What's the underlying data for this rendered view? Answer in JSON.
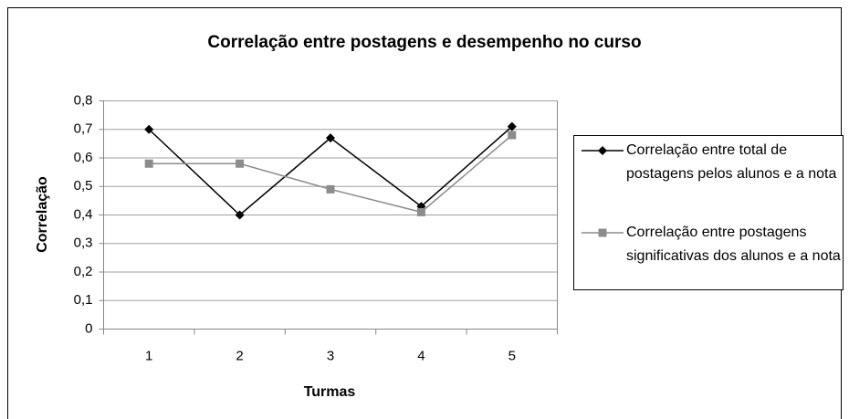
{
  "chart_data": {
    "type": "line",
    "title": "Correlação entre postagens e desempenho no curso",
    "xlabel": "Turmas",
    "ylabel": "Correlação",
    "categories": [
      "1",
      "2",
      "3",
      "4",
      "5"
    ],
    "series": [
      {
        "name": "Correlação entre total de postagens pelos alunos e a nota",
        "color": "#000000",
        "marker": "diamond",
        "values": [
          0.7,
          0.4,
          0.67,
          0.43,
          0.71
        ]
      },
      {
        "name": "Correlação entre postagens significativas dos alunos e a nota",
        "color": "#8c8c8c",
        "marker": "square",
        "values": [
          0.58,
          0.58,
          0.49,
          0.41,
          0.68
        ]
      }
    ],
    "ylim": [
      0,
      0.8
    ],
    "yticks": [
      0,
      {
        "value": 0.1,
        "label": "0,1"
      },
      {
        "value": 0.2,
        "label": "0,2"
      },
      {
        "value": 0.3,
        "label": "0,3"
      },
      {
        "value": 0.4,
        "label": "0,4"
      },
      {
        "value": 0.5,
        "label": "0,5"
      },
      {
        "value": 0.6,
        "label": "0,6"
      },
      {
        "value": 0.7,
        "label": "0,7"
      },
      {
        "value": 0.8,
        "label": "0,8"
      }
    ],
    "grid": true,
    "legend": "right"
  }
}
